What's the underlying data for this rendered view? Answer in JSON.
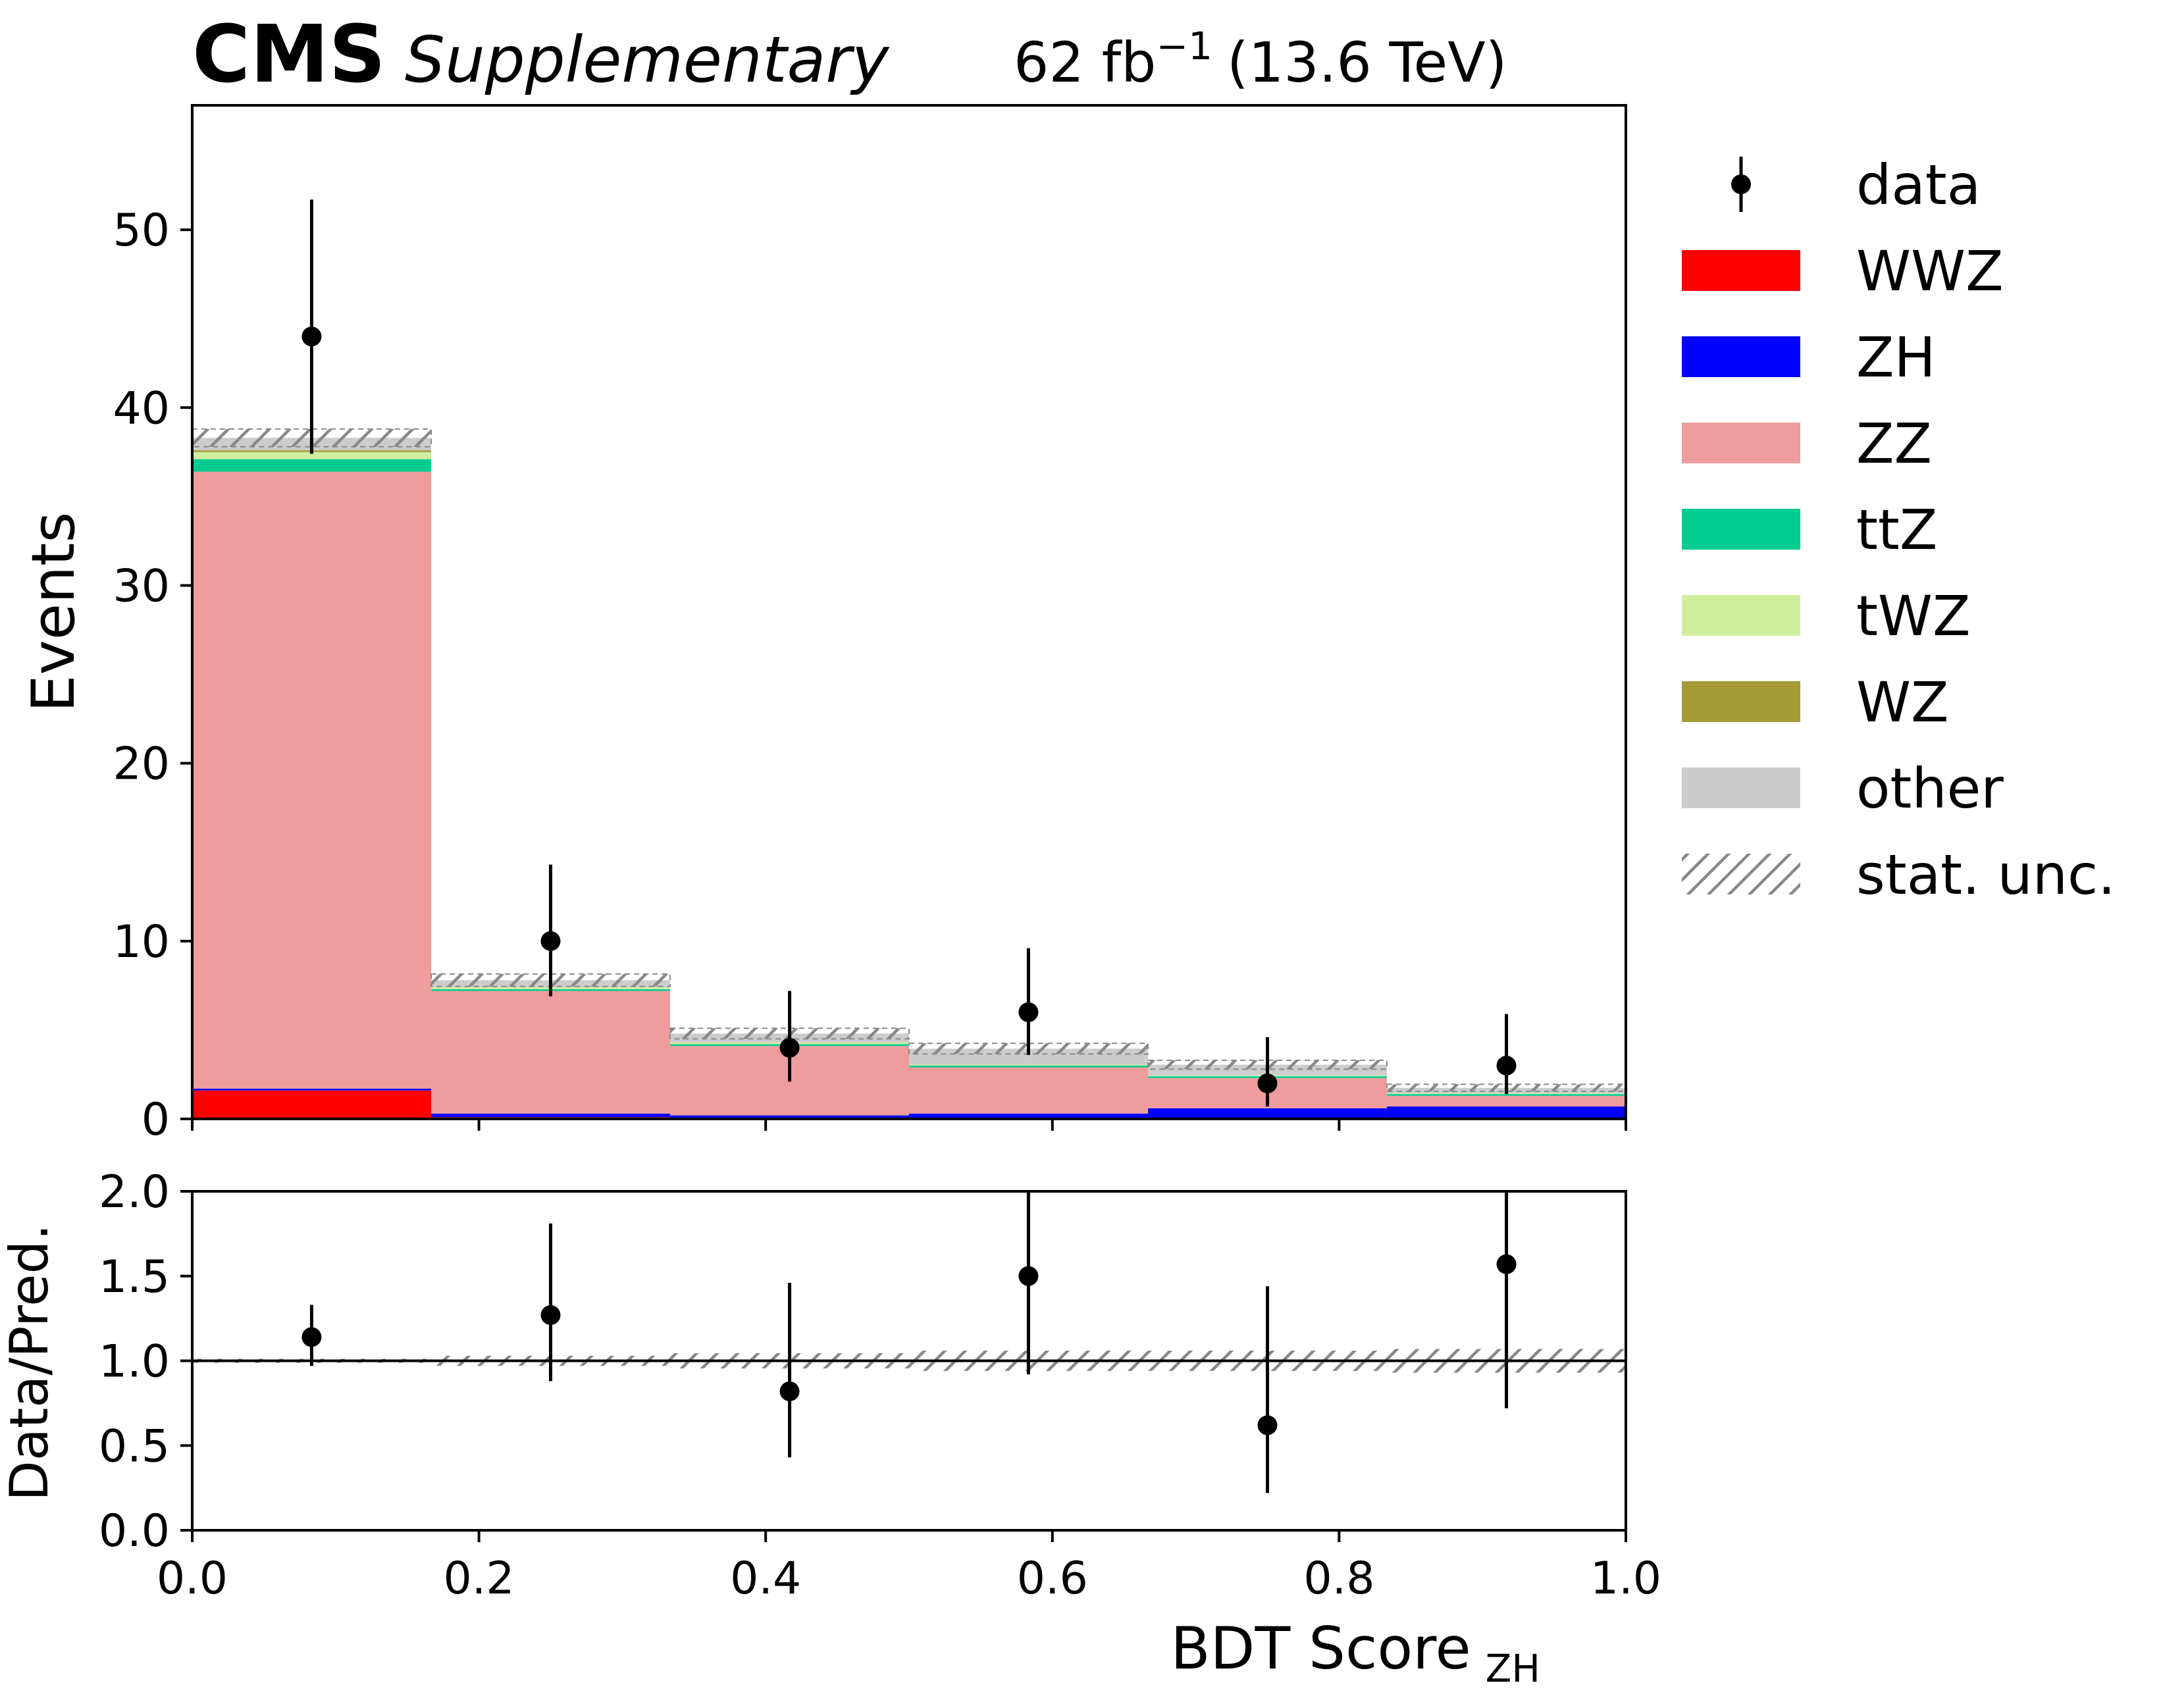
{
  "header": {
    "experiment": "CMS",
    "subtitle": "Supplementary",
    "lumi_value": "62 fb",
    "lumi_exp": "−1",
    "energy": "(13.6 TeV)"
  },
  "colors": {
    "WWZ": "#ff0000",
    "ZH": "#0000ff",
    "ZZ": "#ee9c9c",
    "ttZ": "#00cc90",
    "tWZ": "#cfef9f",
    "WZ": "#a59a35",
    "other": "#cccccc",
    "stat_unc": "#888888",
    "data": "#000000"
  },
  "chart_data": [
    {
      "type": "bar",
      "subtype": "stacked_histogram",
      "panel": "main",
      "bin_edges": [
        0.0,
        0.1667,
        0.3333,
        0.5,
        0.6667,
        0.8333,
        1.0
      ],
      "series": [
        {
          "name": "WWZ",
          "values": [
            1.6,
            0.1,
            0.0,
            0.0,
            0.0,
            0.0
          ]
        },
        {
          "name": "ZH",
          "values": [
            0.1,
            0.2,
            0.2,
            0.3,
            0.6,
            0.7
          ]
        },
        {
          "name": "ZZ",
          "values": [
            34.7,
            6.9,
            3.9,
            2.6,
            1.7,
            0.6
          ]
        },
        {
          "name": "ttZ",
          "values": [
            0.7,
            0.1,
            0.1,
            0.1,
            0.1,
            0.1
          ]
        },
        {
          "name": "tWZ",
          "values": [
            0.4,
            0.1,
            0.1,
            0.05,
            0.05,
            0.05
          ]
        },
        {
          "name": "WZ",
          "values": [
            0.1,
            0.0,
            0.0,
            0.0,
            0.0,
            0.0
          ]
        },
        {
          "name": "other",
          "values": [
            0.7,
            0.4,
            0.5,
            0.9,
            0.6,
            0.3
          ]
        }
      ],
      "stat_unc": [
        0.5,
        0.35,
        0.3,
        0.3,
        0.25,
        0.2
      ],
      "data": {
        "x": [
          0.0833,
          0.25,
          0.4167,
          0.5833,
          0.75,
          0.9167
        ],
        "y": [
          44,
          10,
          4,
          6,
          2,
          3
        ],
        "err_low": [
          6.6,
          3.1,
          1.9,
          2.4,
          1.3,
          1.6
        ],
        "err_high": [
          7.7,
          4.3,
          3.2,
          3.6,
          2.6,
          2.9
        ]
      },
      "xlim": [
        0.0,
        1.0
      ],
      "ylim": [
        0,
        57
      ],
      "yticks": [
        "0",
        "10",
        "20",
        "30",
        "40",
        "50"
      ],
      "ytick_values": [
        0,
        10,
        20,
        30,
        40,
        50
      ],
      "ylabel": "Events",
      "legend": {
        "position": "right",
        "entries": [
          "data",
          "WWZ",
          "ZH",
          "ZZ",
          "ttZ",
          "tWZ",
          "WZ",
          "other",
          "stat. unc."
        ]
      }
    },
    {
      "type": "scatter",
      "panel": "ratio",
      "x": [
        0.0833,
        0.25,
        0.4167,
        0.5833,
        0.75,
        0.9167
      ],
      "y": [
        1.14,
        1.27,
        0.82,
        1.5,
        0.62,
        1.57
      ],
      "err_low": [
        0.17,
        0.39,
        0.39,
        0.58,
        0.4,
        0.85
      ],
      "err_high": [
        0.19,
        0.54,
        0.64,
        0.9,
        0.82,
        1.52
      ],
      "stat_band": [
        0.012,
        0.03,
        0.045,
        0.06,
        0.06,
        0.07
      ],
      "reference_line": 1.0,
      "xlim": [
        0.0,
        1.0
      ],
      "ylim": [
        0.0,
        2.0
      ],
      "yticks": [
        "0.0",
        "0.5",
        "1.0",
        "1.5",
        "2.0"
      ],
      "ytick_values": [
        0.0,
        0.5,
        1.0,
        1.5,
        2.0
      ],
      "xticks": [
        "0.0",
        "0.2",
        "0.4",
        "0.6",
        "0.8",
        "1.0"
      ],
      "xtick_values": [
        0.0,
        0.2,
        0.4,
        0.6,
        0.8,
        1.0
      ],
      "ylabel": "Data/Pred.",
      "xlabel": "BDT Score",
      "xlabel_sub": "ZH"
    }
  ]
}
